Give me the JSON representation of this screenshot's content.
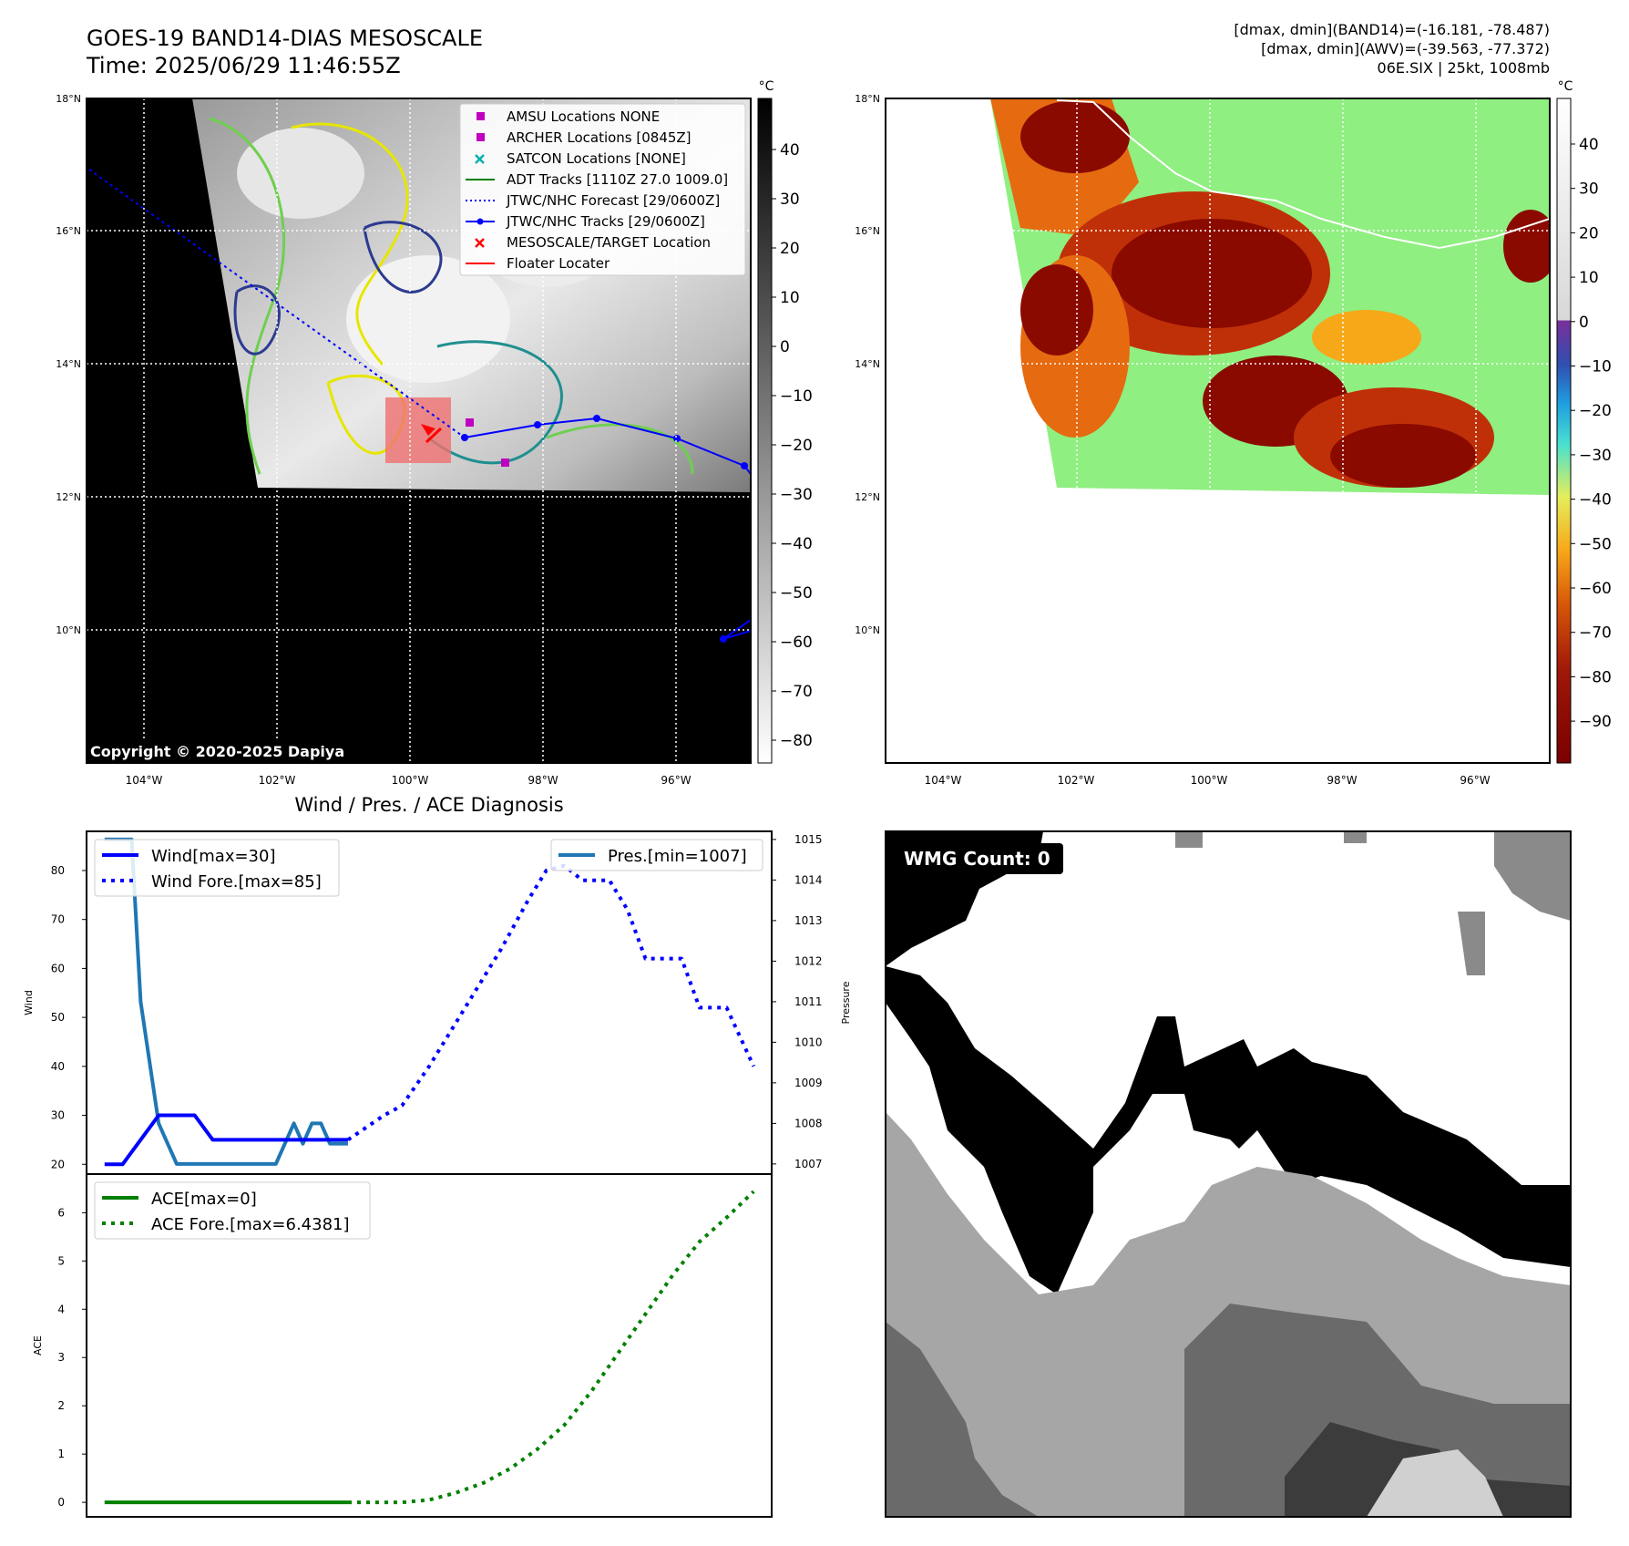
{
  "header": {
    "title_line1": "GOES-19 BAND14-DIAS MESOSCALE",
    "title_line2": "Time: 2025/06/29 11:46:55Z",
    "info_line1": "[dmax, dmin](BAND14)=(-16.181, -78.487)",
    "info_line2": "[dmax, dmin](AWV)=(-39.563, -77.372)",
    "info_line3": "06E.SIX | 25kt, 1008mb"
  },
  "copyright": "Copyright © 2020-2025 Dapiya",
  "map_axes": {
    "lat_labels": [
      "18°N",
      "16°N",
      "14°N",
      "12°N",
      "10°N"
    ],
    "lon_labels": [
      "104°W",
      "102°W",
      "100°W",
      "98°W",
      "96°W"
    ]
  },
  "colorbar_ir": {
    "unit": "°C",
    "ticks": [
      "40",
      "30",
      "20",
      "10",
      "0",
      "−10",
      "−20",
      "−30",
      "−40",
      "−50",
      "−60",
      "−70",
      "−80"
    ]
  },
  "colorbar_awv": {
    "unit": "°C",
    "ticks": [
      "40",
      "30",
      "20",
      "10",
      "0",
      "−10",
      "−20",
      "−30",
      "−40",
      "−50",
      "−60",
      "−70",
      "−80",
      "−90"
    ],
    "colors": [
      "#ffffff",
      "#7a2f9a",
      "#2f4fb0",
      "#1f9fe0",
      "#48e0d0",
      "#e6ee5a",
      "#f7a818",
      "#d85808",
      "#a01808",
      "#7a0000"
    ]
  },
  "legend": {
    "items": [
      {
        "label": "AMSU Locations NONE",
        "marker": "square",
        "color": "#c000c0"
      },
      {
        "label": "ARCHER Locations [0845Z]",
        "marker": "square",
        "color": "#c000c0"
      },
      {
        "label": "SATCON Locations [NONE]",
        "marker": "x",
        "color": "#00b0b0"
      },
      {
        "label": "ADT Tracks [1110Z 27.0 1009.0]",
        "marker": "line",
        "color": "#008000"
      },
      {
        "label": "JTWC/NHC Forecast [29/0600Z]",
        "marker": "dotted",
        "color": "#0000ff"
      },
      {
        "label": "JTWC/NHC Tracks [29/0600Z]",
        "marker": "line-dot",
        "color": "#0000ff"
      },
      {
        "label": "MESOSCALE/TARGET Location",
        "marker": "x",
        "color": "#ff0000"
      },
      {
        "label": "Floater Locater",
        "marker": "line",
        "color": "#ff0000"
      }
    ]
  },
  "diagnosis": {
    "title": "Wind / Pres. / ACE Diagnosis",
    "wind_ylabel": "Wind",
    "pres_ylabel": "Pressure",
    "ace_ylabel": "ACE",
    "legend_wind": "Wind[max=30]",
    "legend_wind_fore": "Wind Fore.[max=85]",
    "legend_pres": "Pres.[min=1007]",
    "legend_ace": "ACE[max=0]",
    "legend_ace_fore": "ACE Fore.[max=6.4381]"
  },
  "wmg": {
    "label": "WMG Count: 0"
  },
  "chart_data": [
    {
      "type": "line",
      "title": "Wind / Pres. / ACE Diagnosis",
      "ylabel": "Wind",
      "ylim": [
        18,
        88
      ],
      "yticks": [
        20,
        30,
        40,
        50,
        60,
        70,
        80
      ],
      "series": [
        {
          "name": "Wind[max=30]",
          "color": "#0000ff",
          "style": "solid",
          "x": [
            0,
            2,
            6,
            10,
            12,
            23,
            27
          ],
          "values": [
            20,
            20,
            30,
            30,
            25,
            25,
            25
          ]
        },
        {
          "name": "Wind Fore.[max=85]",
          "color": "#0000ff",
          "style": "dotted",
          "x": [
            27,
            31,
            33,
            36,
            38,
            41,
            44,
            47,
            49,
            51,
            53,
            56,
            58,
            60,
            64,
            66,
            69,
            72
          ],
          "values": [
            25,
            30,
            32,
            40,
            46,
            55,
            64,
            74,
            80,
            81,
            78,
            78,
            72,
            62,
            62,
            52,
            52,
            40
          ]
        }
      ]
    },
    {
      "type": "line",
      "ylabel": "Pressure",
      "ylim": [
        1006.75,
        1015.2
      ],
      "yticks": [
        1007,
        1008,
        1009,
        1010,
        1011,
        1012,
        1013,
        1014,
        1015
      ],
      "series": [
        {
          "name": "Pres.[min=1007]",
          "color": "#1f77b4",
          "style": "solid",
          "x": [
            0,
            3,
            4,
            6,
            7,
            8,
            9,
            11,
            18,
            19,
            21,
            22,
            23,
            24,
            25,
            26,
            27
          ],
          "values": [
            1015,
            1015,
            1011,
            1008,
            1007.5,
            1007,
            1007,
            1007,
            1007,
            1007,
            1008,
            1007.5,
            1008,
            1008,
            1007.5,
            1007.5,
            1007.5
          ]
        }
      ]
    },
    {
      "type": "line",
      "ylabel": "ACE",
      "ylim": [
        -0.3,
        6.8
      ],
      "yticks": [
        0,
        1,
        2,
        3,
        4,
        5,
        6
      ],
      "series": [
        {
          "name": "ACE[max=0]",
          "color": "#008000",
          "style": "solid",
          "x": [
            0,
            27
          ],
          "values": [
            0,
            0
          ]
        },
        {
          "name": "ACE Fore.[max=6.4381]",
          "color": "#008000",
          "style": "dotted",
          "x": [
            27,
            30,
            33,
            36,
            39,
            42,
            45,
            48,
            51,
            54,
            57,
            60,
            63,
            66,
            69,
            72
          ],
          "values": [
            0,
            0,
            0,
            0.05,
            0.2,
            0.4,
            0.7,
            1.1,
            1.6,
            2.3,
            3.1,
            3.9,
            4.7,
            5.4,
            5.9,
            6.4381
          ]
        }
      ]
    }
  ]
}
